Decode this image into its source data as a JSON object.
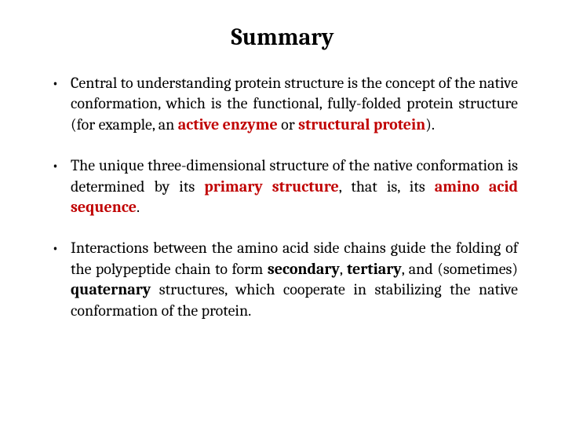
{
  "title": "Summary",
  "colors": {
    "text": "#000000",
    "emphasis_red": "#c00000",
    "background": "#ffffff"
  },
  "typography": {
    "title_fontsize": 30,
    "title_weight": "bold",
    "body_fontsize": 20,
    "body_lineheight": 1.32,
    "font_family": "Cambria, Georgia, serif",
    "text_align_body": "justify"
  },
  "bullets": [
    {
      "pre1": "Central to understanding protein structure is the concept of the native conformation, which is the functional, fully-folded protein structure (for example, an ",
      "em1": "active enzyme",
      "mid1": " or ",
      "em2": "structural protein",
      "post1": ")."
    },
    {
      "pre1": "The unique three-dimensional structure of the native conformation is determined by its ",
      "em1": "primary structure",
      "mid1": ", that is, its ",
      "em2": "amino acid sequence",
      "post1": "."
    },
    {
      "pre1": "Interactions between the amino acid side chains guide the folding of the polypeptide chain to form ",
      "b1": "secondary",
      "sep1": ", ",
      "b2": "tertiary",
      "sep2": ", and (sometimes) ",
      "b3": "quaternary",
      "post1": " structures, which cooperate in stabilizing the native conformation of the protein."
    }
  ]
}
